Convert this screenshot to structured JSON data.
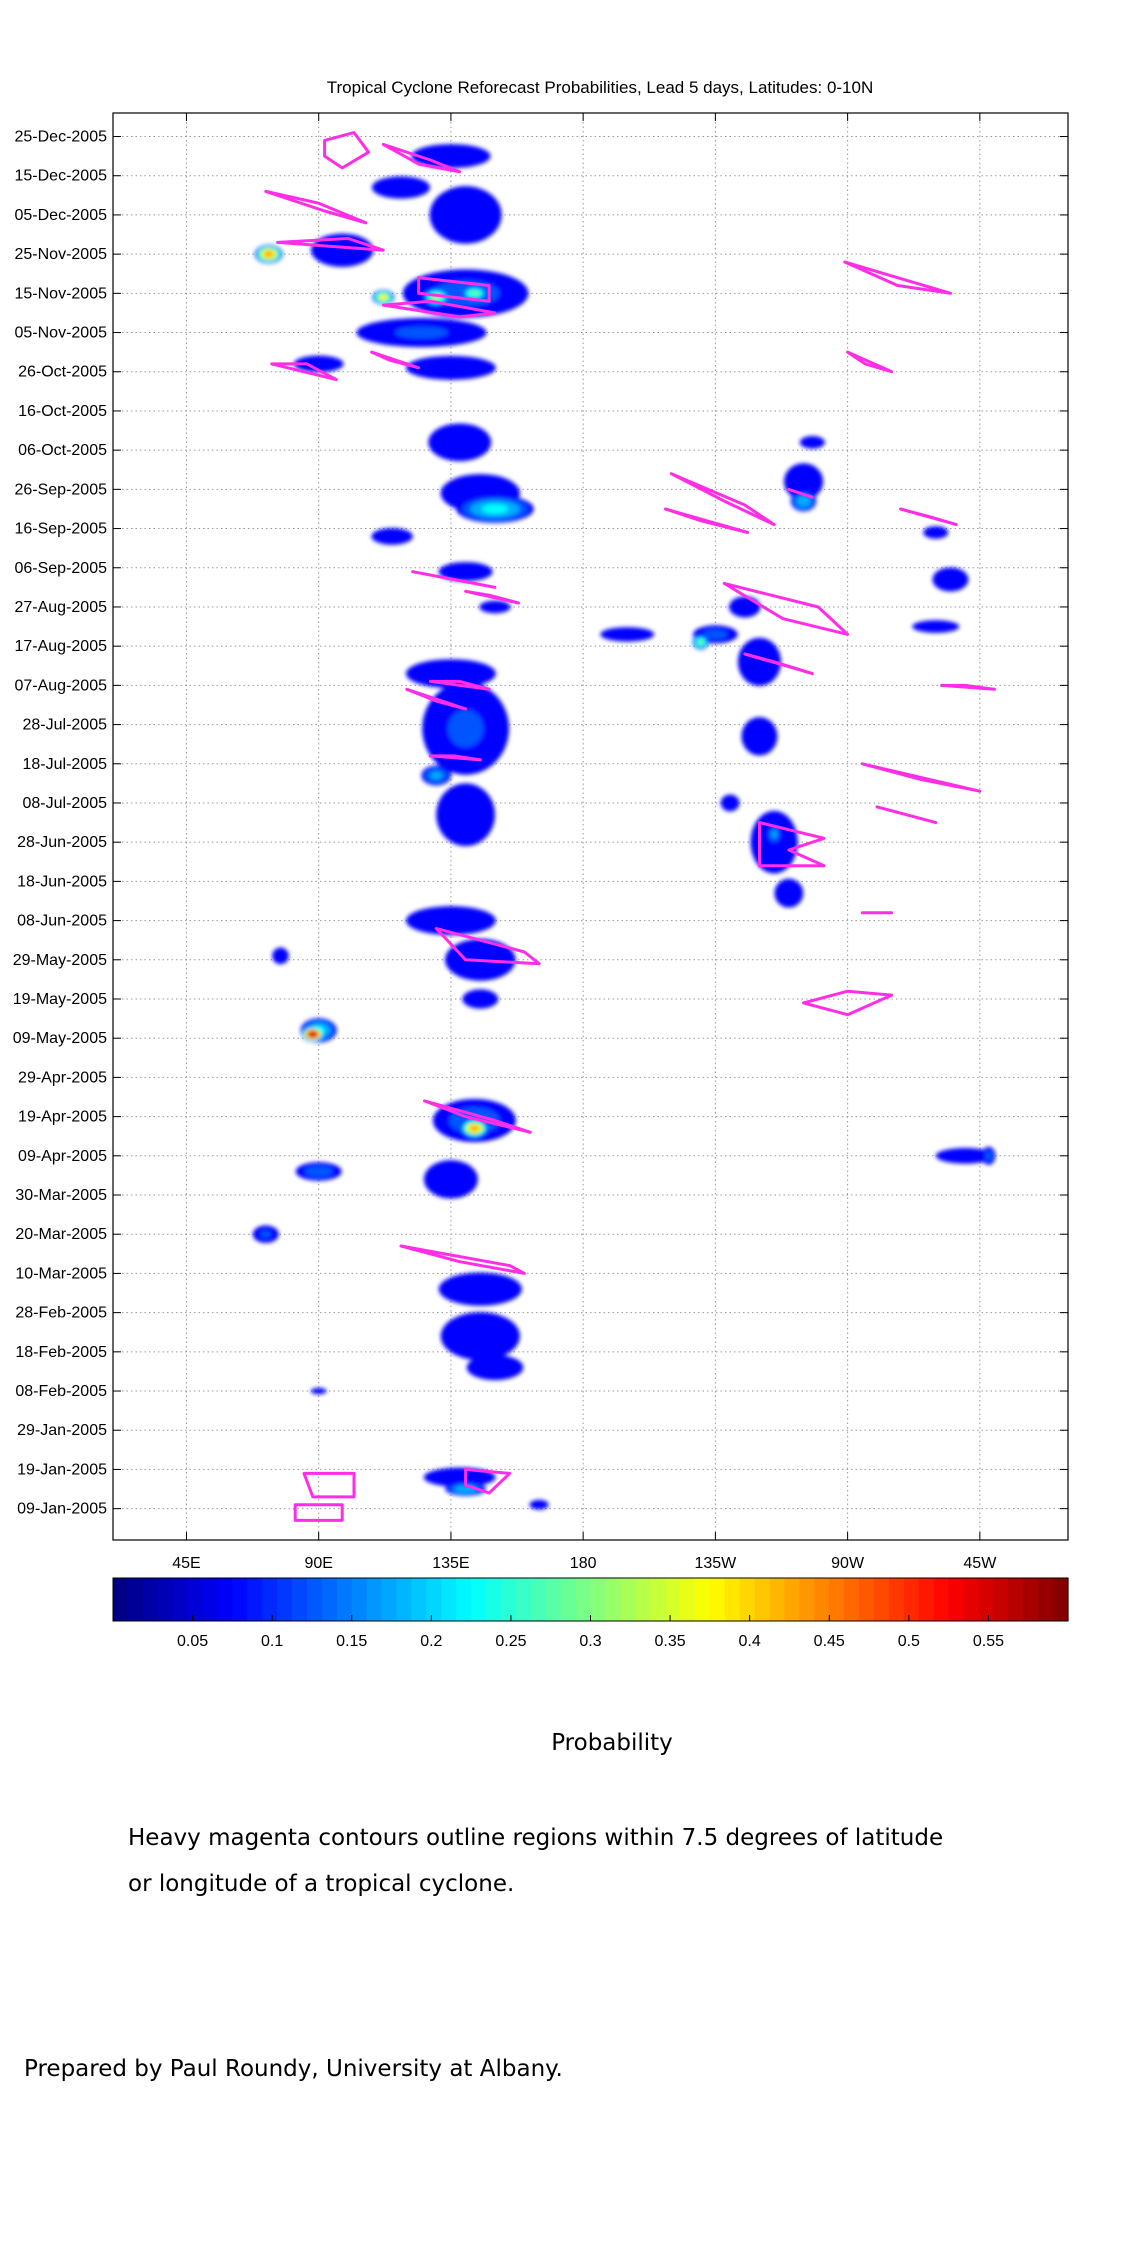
{
  "chart_data": {
    "type": "heatmap",
    "title": "Tropical Cyclone Reforecast Probabilities, Lead 5 days, Latitudes: 0-10N",
    "x_ticks": [
      "45E",
      "90E",
      "135E",
      "180",
      "135W",
      "90W",
      "45W"
    ],
    "x_tick_values": [
      45,
      90,
      135,
      180,
      225,
      270,
      315
    ],
    "xlim": [
      20,
      345
    ],
    "y_ticks": [
      "25-Dec-2005",
      "15-Dec-2005",
      "05-Dec-2005",
      "25-Nov-2005",
      "15-Nov-2005",
      "05-Nov-2005",
      "26-Oct-2005",
      "16-Oct-2005",
      "06-Oct-2005",
      "26-Sep-2005",
      "16-Sep-2005",
      "06-Sep-2005",
      "27-Aug-2005",
      "17-Aug-2005",
      "07-Aug-2005",
      "28-Jul-2005",
      "18-Jul-2005",
      "08-Jul-2005",
      "28-Jun-2005",
      "18-Jun-2005",
      "08-Jun-2005",
      "29-May-2005",
      "19-May-2005",
      "09-May-2005",
      "29-Apr-2005",
      "19-Apr-2005",
      "09-Apr-2005",
      "30-Mar-2005",
      "20-Mar-2005",
      "10-Mar-2005",
      "28-Feb-2005",
      "18-Feb-2005",
      "08-Feb-2005",
      "29-Jan-2005",
      "19-Jan-2005",
      "09-Jan-2005"
    ],
    "ylim": [
      "01-Jan-2005",
      "31-Dec-2005"
    ],
    "grid": true,
    "colorbar": {
      "label": "Probability",
      "ticks": [
        "0.05",
        "0.1",
        "0.15",
        "0.2",
        "0.25",
        "0.3",
        "0.35",
        "0.4",
        "0.45",
        "0.5",
        "0.55"
      ],
      "tick_values": [
        0.05,
        0.1,
        0.15,
        0.2,
        0.25,
        0.3,
        0.35,
        0.4,
        0.45,
        0.5,
        0.55
      ],
      "range": [
        0,
        0.6
      ],
      "colormap": "jet"
    },
    "blobs": [
      {
        "lon": 135,
        "date": "2005-12-20",
        "dlon": 22,
        "ddays": 5,
        "p": 0.08
      },
      {
        "lon": 140,
        "date": "2005-12-05",
        "dlon": 20,
        "ddays": 12,
        "p": 0.08
      },
      {
        "lon": 118,
        "date": "2005-12-12",
        "dlon": 14,
        "ddays": 4,
        "p": 0.1
      },
      {
        "lon": 98,
        "date": "2005-11-26",
        "dlon": 15,
        "ddays": 6,
        "p": 0.1
      },
      {
        "lon": 73,
        "date": "2005-11-25",
        "dlon": 5,
        "ddays": 2.5,
        "p": 0.45
      },
      {
        "lon": 140,
        "date": "2005-11-15",
        "dlon": 28,
        "ddays": 8,
        "p": 0.12
      },
      {
        "lon": 130,
        "date": "2005-11-14",
        "dlon": 5,
        "ddays": 2.5,
        "p": 0.32
      },
      {
        "lon": 112,
        "date": "2005-11-14",
        "dlon": 4,
        "ddays": 2,
        "p": 0.38
      },
      {
        "lon": 143,
        "date": "2005-11-15",
        "dlon": 5,
        "ddays": 2,
        "p": 0.3
      },
      {
        "lon": 125,
        "date": "2005-11-05",
        "dlon": 30,
        "ddays": 5,
        "p": 0.11
      },
      {
        "lon": 90,
        "date": "2005-10-28",
        "dlon": 12,
        "ddays": 3,
        "p": 0.1
      },
      {
        "lon": 135,
        "date": "2005-10-27",
        "dlon": 25,
        "ddays": 5,
        "p": 0.08
      },
      {
        "lon": 138,
        "date": "2005-10-08",
        "dlon": 20,
        "ddays": 9,
        "p": 0.07
      },
      {
        "lon": 150,
        "date": "2005-09-21",
        "dlon": 15,
        "ddays": 4,
        "p": 0.22
      },
      {
        "lon": 145,
        "date": "2005-09-25",
        "dlon": 22,
        "ddays": 8,
        "p": 0.08
      },
      {
        "lon": 115,
        "date": "2005-09-14",
        "dlon": 10,
        "ddays": 3,
        "p": 0.1
      },
      {
        "lon": 140,
        "date": "2005-09-05",
        "dlon": 15,
        "ddays": 4,
        "p": 0.08
      },
      {
        "lon": 150,
        "date": "2005-08-27",
        "dlon": 10,
        "ddays": 3,
        "p": 0.07
      },
      {
        "lon": 135,
        "date": "2005-08-10",
        "dlon": 25,
        "ddays": 6,
        "p": 0.08
      },
      {
        "lon": 140,
        "date": "2005-07-27",
        "dlon": 20,
        "ddays": 16,
        "p": 0.11
      },
      {
        "lon": 130,
        "date": "2005-07-15",
        "dlon": 6,
        "ddays": 3,
        "p": 0.17
      },
      {
        "lon": 140,
        "date": "2005-07-05",
        "dlon": 15,
        "ddays": 12,
        "p": 0.09
      },
      {
        "lon": 135,
        "date": "2005-06-08",
        "dlon": 25,
        "ddays": 6,
        "p": 0.08
      },
      {
        "lon": 145,
        "date": "2005-05-29",
        "dlon": 18,
        "ddays": 8,
        "p": 0.09
      },
      {
        "lon": 145,
        "date": "2005-05-19",
        "dlon": 10,
        "ddays": 4,
        "p": 0.08
      },
      {
        "lon": 77,
        "date": "2005-05-30",
        "dlon": 4,
        "ddays": 3,
        "p": 0.1
      },
      {
        "lon": 90,
        "date": "2005-05-11",
        "dlon": 7,
        "ddays": 3.5,
        "p": 0.22
      },
      {
        "lon": 88,
        "date": "2005-05-10",
        "dlon": 4,
        "ddays": 2,
        "p": 0.6
      },
      {
        "lon": 143,
        "date": "2005-04-18",
        "dlon": 18,
        "ddays": 7,
        "p": 0.13
      },
      {
        "lon": 143,
        "date": "2005-04-16",
        "dlon": 5,
        "ddays": 2.5,
        "p": 0.45
      },
      {
        "lon": 135,
        "date": "2005-04-03",
        "dlon": 15,
        "ddays": 8,
        "p": 0.08
      },
      {
        "lon": 90,
        "date": "2005-04-05",
        "dlon": 10,
        "ddays": 3,
        "p": 0.13
      },
      {
        "lon": 72,
        "date": "2005-03-20",
        "dlon": 6,
        "ddays": 3,
        "p": 0.11
      },
      {
        "lon": 145,
        "date": "2005-03-06",
        "dlon": 20,
        "ddays": 6,
        "p": 0.1
      },
      {
        "lon": 145,
        "date": "2005-02-22",
        "dlon": 22,
        "ddays": 10,
        "p": 0.08
      },
      {
        "lon": 150,
        "date": "2005-02-14",
        "dlon": 18,
        "ddays": 6,
        "p": 0.07
      },
      {
        "lon": 138,
        "date": "2005-01-17",
        "dlon": 20,
        "ddays": 4,
        "p": 0.08
      },
      {
        "lon": 140,
        "date": "2005-01-14",
        "dlon": 8,
        "ddays": 2,
        "p": 0.2
      },
      {
        "lon": 165,
        "date": "2005-01-10",
        "dlon": 8,
        "ddays": 3,
        "p": 0.06
      },
      {
        "lon": 90,
        "date": "2005-02-08",
        "dlon": 5,
        "ddays": 1.5,
        "p": 0.07
      },
      {
        "lon": 255,
        "date": "2005-09-28",
        "dlon": 10,
        "ddays": 7,
        "p": 0.09
      },
      {
        "lon": 255,
        "date": "2005-09-23",
        "dlon": 5,
        "ddays": 3,
        "p": 0.2
      },
      {
        "lon": 258,
        "date": "2005-10-08",
        "dlon": 8,
        "ddays": 3,
        "p": 0.07
      },
      {
        "lon": 195,
        "date": "2005-08-20",
        "dlon": 15,
        "ddays": 3,
        "p": 0.08
      },
      {
        "lon": 225,
        "date": "2005-08-20",
        "dlon": 10,
        "ddays": 3,
        "p": 0.12
      },
      {
        "lon": 220,
        "date": "2005-08-18",
        "dlon": 3,
        "ddays": 2,
        "p": 0.3
      },
      {
        "lon": 240,
        "date": "2005-08-13",
        "dlon": 12,
        "ddays": 10,
        "p": 0.08
      },
      {
        "lon": 235,
        "date": "2005-08-27",
        "dlon": 10,
        "ddays": 5,
        "p": 0.07
      },
      {
        "lon": 240,
        "date": "2005-07-25",
        "dlon": 10,
        "ddays": 8,
        "p": 0.08
      },
      {
        "lon": 245,
        "date": "2005-06-28",
        "dlon": 12,
        "ddays": 12,
        "p": 0.09
      },
      {
        "lon": 250,
        "date": "2005-06-15",
        "dlon": 8,
        "ddays": 6,
        "p": 0.08
      },
      {
        "lon": 230,
        "date": "2005-07-08",
        "dlon": 6,
        "ddays": 4,
        "p": 0.07
      },
      {
        "lon": 245,
        "date": "2005-06-30",
        "dlon": 3,
        "ddays": 3,
        "p": 0.17
      },
      {
        "lon": 305,
        "date": "2005-09-03",
        "dlon": 10,
        "ddays": 5,
        "p": 0.08
      },
      {
        "lon": 300,
        "date": "2005-08-22",
        "dlon": 15,
        "ddays": 3,
        "p": 0.07
      },
      {
        "lon": 300,
        "date": "2005-09-15",
        "dlon": 8,
        "ddays": 3,
        "p": 0.07
      },
      {
        "lon": 310,
        "date": "2005-04-09",
        "dlon": 15,
        "ddays": 3,
        "p": 0.09
      },
      {
        "lon": 318,
        "date": "2005-04-09",
        "dlon": 3,
        "ddays": 3,
        "p": 0.12
      }
    ],
    "contours": [
      [
        [
          92,
          "2005-12-24"
        ],
        [
          102,
          "2005-12-26"
        ],
        [
          107,
          "2005-12-21"
        ],
        [
          98,
          "2005-12-17"
        ],
        [
          92,
          "2005-12-20"
        ]
      ],
      [
        [
          112,
          "2005-12-23"
        ],
        [
          128,
          "2005-12-19"
        ],
        [
          138,
          "2005-12-16"
        ],
        [
          124,
          "2005-12-18"
        ],
        [
          112,
          "2005-12-23"
        ]
      ],
      [
        [
          72,
          "2005-12-11"
        ],
        [
          92,
          "2005-12-06"
        ],
        [
          106,
          "2005-12-03"
        ],
        [
          90,
          "2005-12-08"
        ],
        [
          72,
          "2005-12-11"
        ]
      ],
      [
        [
          76,
          "2005-11-28"
        ],
        [
          112,
          "2005-11-26"
        ],
        [
          100,
          "2005-11-29"
        ],
        [
          76,
          "2005-11-28"
        ]
      ],
      [
        [
          124,
          "2005-11-19"
        ],
        [
          148,
          "2005-11-17"
        ],
        [
          148,
          "2005-11-13"
        ],
        [
          124,
          "2005-11-15"
        ],
        [
          124,
          "2005-11-19"
        ]
      ],
      [
        [
          112,
          "2005-11-12"
        ],
        [
          138,
          "2005-11-09"
        ],
        [
          150,
          "2005-11-10"
        ],
        [
          128,
          "2005-11-13"
        ],
        [
          112,
          "2005-11-12"
        ]
      ],
      [
        [
          108,
          "2005-10-31"
        ],
        [
          124,
          "2005-10-27"
        ],
        [
          114,
          "2005-10-29"
        ],
        [
          108,
          "2005-10-31"
        ]
      ],
      [
        [
          74,
          "2005-10-28"
        ],
        [
          96,
          "2005-10-24"
        ],
        [
          86,
          "2005-10-28"
        ],
        [
          74,
          "2005-10-28"
        ]
      ],
      [
        [
          269,
          "2005-11-23"
        ],
        [
          287,
          "2005-11-19"
        ],
        [
          305,
          "2005-11-15"
        ],
        [
          287,
          "2005-11-17"
        ],
        [
          269,
          "2005-11-23"
        ]
      ],
      [
        [
          270,
          "2005-10-31"
        ],
        [
          285,
          "2005-10-26"
        ],
        [
          276,
          "2005-10-28"
        ],
        [
          270,
          "2005-10-31"
        ]
      ],
      [
        [
          210,
          "2005-09-30"
        ],
        [
          235,
          "2005-09-22"
        ],
        [
          245,
          "2005-09-17"
        ],
        [
          228,
          "2005-09-23"
        ],
        [
          210,
          "2005-09-30"
        ]
      ],
      [
        [
          208,
          "2005-09-21"
        ],
        [
          236,
          "2005-09-15"
        ],
        [
          220,
          "2005-09-18"
        ],
        [
          208,
          "2005-09-21"
        ]
      ],
      [
        [
          250,
          "2005-09-26"
        ],
        [
          258,
          "2005-09-24"
        ],
        [
          250,
          "2005-09-26"
        ]
      ],
      [
        [
          288,
          "2005-09-21"
        ],
        [
          307,
          "2005-09-17"
        ],
        [
          298,
          "2005-09-19"
        ],
        [
          288,
          "2005-09-21"
        ]
      ],
      [
        [
          122,
          "2005-09-05"
        ],
        [
          150,
          "2005-09-01"
        ],
        [
          136,
          "2005-09-03"
        ],
        [
          122,
          "2005-09-05"
        ]
      ],
      [
        [
          140,
          "2005-08-31"
        ],
        [
          158,
          "2005-08-28"
        ],
        [
          148,
          "2005-08-30"
        ],
        [
          140,
          "2005-08-31"
        ]
      ],
      [
        [
          228,
          "2005-09-02"
        ],
        [
          260,
          "2005-08-27"
        ],
        [
          270,
          "2005-08-20"
        ],
        [
          248,
          "2005-08-24"
        ],
        [
          228,
          "2005-09-02"
        ]
      ],
      [
        [
          235,
          "2005-08-15"
        ],
        [
          258,
          "2005-08-10"
        ],
        [
          245,
          "2005-08-13"
        ],
        [
          235,
          "2005-08-15"
        ]
      ],
      [
        [
          128,
          "2005-08-08"
        ],
        [
          148,
          "2005-08-06"
        ],
        [
          138,
          "2005-08-08"
        ],
        [
          128,
          "2005-08-08"
        ]
      ],
      [
        [
          120,
          "2005-08-06"
        ],
        [
          140,
          "2005-08-01"
        ],
        [
          130,
          "2005-08-03"
        ],
        [
          120,
          "2005-08-06"
        ]
      ],
      [
        [
          128,
          "2005-07-20"
        ],
        [
          145,
          "2005-07-19"
        ],
        [
          136,
          "2005-07-20"
        ],
        [
          128,
          "2005-07-20"
        ]
      ],
      [
        [
          302,
          "2005-08-07"
        ],
        [
          320,
          "2005-08-06"
        ],
        [
          310,
          "2005-08-07"
        ],
        [
          302,
          "2005-08-07"
        ]
      ],
      [
        [
          275,
          "2005-07-18"
        ],
        [
          315,
          "2005-07-11"
        ],
        [
          295,
          "2005-07-14"
        ],
        [
          275,
          "2005-07-18"
        ]
      ],
      [
        [
          280,
          "2005-07-07"
        ],
        [
          300,
          "2005-07-03"
        ],
        [
          290,
          "2005-07-05"
        ],
        [
          280,
          "2005-07-07"
        ]
      ],
      [
        [
          240,
          "2005-07-03"
        ],
        [
          262,
          "2005-06-29"
        ],
        [
          250,
          "2005-06-26"
        ],
        [
          262,
          "2005-06-22"
        ],
        [
          240,
          "2005-06-22"
        ],
        [
          240,
          "2005-07-03"
        ]
      ],
      [
        [
          275,
          "2005-06-10"
        ],
        [
          285,
          "2005-06-10"
        ],
        [
          280,
          "2005-06-10"
        ],
        [
          275,
          "2005-06-10"
        ]
      ],
      [
        [
          130,
          "2005-06-06"
        ],
        [
          160,
          "2005-05-31"
        ],
        [
          165,
          "2005-05-28"
        ],
        [
          140,
          "2005-05-29"
        ],
        [
          130,
          "2005-06-06"
        ]
      ],
      [
        [
          255,
          "2005-05-18"
        ],
        [
          270,
          "2005-05-21"
        ],
        [
          285,
          "2005-05-20"
        ],
        [
          270,
          "2005-05-15"
        ],
        [
          255,
          "2005-05-18"
        ]
      ],
      [
        [
          126,
          "2005-04-23"
        ],
        [
          150,
          "2005-04-18"
        ],
        [
          162,
          "2005-04-15"
        ],
        [
          140,
          "2005-04-19"
        ],
        [
          126,
          "2005-04-23"
        ]
      ],
      [
        [
          118,
          "2005-03-17"
        ],
        [
          155,
          "2005-03-12"
        ],
        [
          160,
          "2005-03-10"
        ],
        [
          138,
          "2005-03-13"
        ],
        [
          118,
          "2005-03-17"
        ]
      ],
      [
        [
          140,
          "2005-01-19"
        ],
        [
          155,
          "2005-01-18"
        ],
        [
          148,
          "2005-01-13"
        ],
        [
          140,
          "2005-01-15"
        ],
        [
          140,
          "2005-01-19"
        ]
      ],
      [
        [
          85,
          "2005-01-18"
        ],
        [
          102,
          "2005-01-18"
        ],
        [
          102,
          "2005-01-12"
        ],
        [
          88,
          "2005-01-12"
        ],
        [
          85,
          "2005-01-18"
        ]
      ],
      [
        [
          82,
          "2005-01-10"
        ],
        [
          98,
          "2005-01-10"
        ],
        [
          98,
          "2005-01-06"
        ],
        [
          82,
          "2005-01-06"
        ],
        [
          82,
          "2005-01-10"
        ]
      ]
    ]
  },
  "contour_color": "#ff2ee6",
  "note_lines": [
    "Heavy magenta contours outline regions within 7.5 degrees of latitude",
    "or longitude of a tropical cyclone."
  ],
  "credit": "Prepared by Paul Roundy, University at Albany."
}
